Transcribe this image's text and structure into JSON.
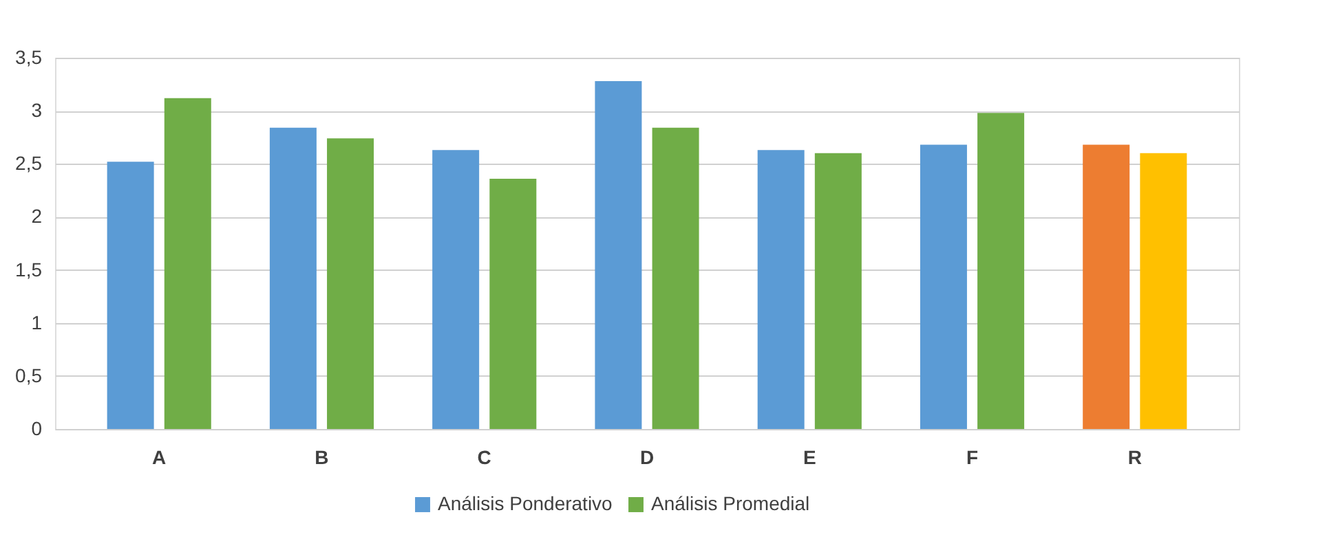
{
  "chart_data": {
    "type": "bar",
    "categories": [
      "A",
      "B",
      "C",
      "D",
      "E",
      "F",
      "R"
    ],
    "series": [
      {
        "name": "Análisis Ponderativo",
        "color": "#5b9bd5",
        "values": [
          2.52,
          2.84,
          2.63,
          3.28,
          2.63,
          2.68,
          2.68
        ],
        "colors": [
          "#5b9bd5",
          "#5b9bd5",
          "#5b9bd5",
          "#5b9bd5",
          "#5b9bd5",
          "#5b9bd5",
          "#ed7d31"
        ]
      },
      {
        "name": "Análisis Promedial",
        "color": "#70ad47",
        "values": [
          3.12,
          2.74,
          2.36,
          2.84,
          2.6,
          2.98,
          2.6
        ],
        "colors": [
          "#70ad47",
          "#70ad47",
          "#70ad47",
          "#70ad47",
          "#70ad47",
          "#70ad47",
          "#ffc000"
        ]
      }
    ],
    "ylim": [
      0,
      3.5
    ],
    "yticks": [
      0,
      {
        "value": 0.5,
        "label": "0,5"
      },
      1,
      {
        "value": 1.5,
        "label": "1,5"
      },
      2,
      {
        "value": 2.5,
        "label": "2,5"
      },
      3,
      {
        "value": 3.5,
        "label": "3,5"
      }
    ],
    "grid": "y",
    "legend": "bottom"
  }
}
